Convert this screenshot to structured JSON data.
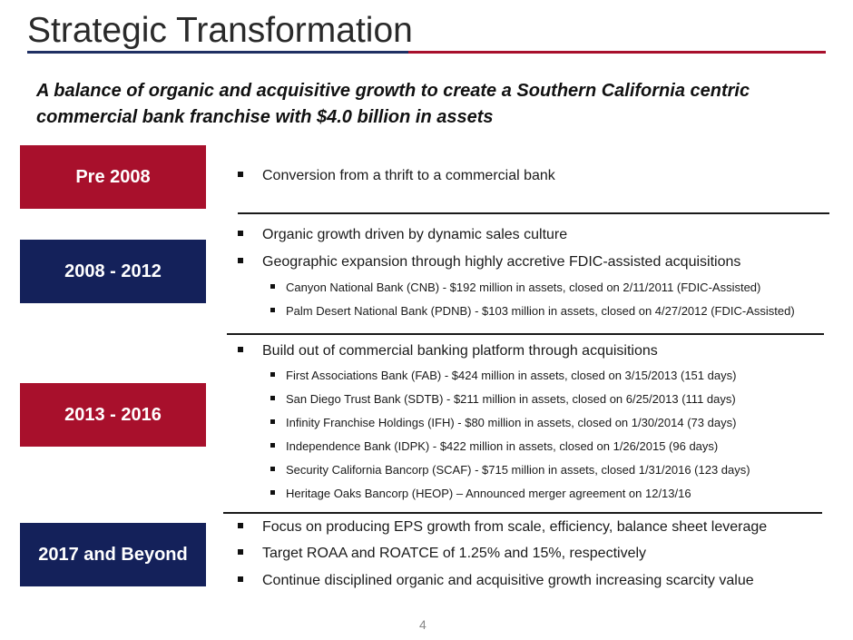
{
  "title": "Strategic Transformation",
  "subtitle": "A balance of organic and acquisitive growth to create a Southern California centric commercial bank franchise with $4.0 billion in assets",
  "colors": {
    "red": "#a8102c",
    "navy": "#14215a"
  },
  "sections": [
    {
      "label": "Pre 2008",
      "bullets": [
        "Conversion from a thrift to a commercial bank"
      ]
    },
    {
      "label": "2008 - 2012",
      "bullets": [
        "Organic growth driven by dynamic sales culture",
        "Geographic expansion through highly accretive FDIC-assisted acquisitions"
      ],
      "sub_bullets": [
        "Canyon National Bank (CNB) - $192 million in assets, closed on 2/11/2011 (FDIC-Assisted)",
        "Palm Desert National Bank (PDNB) - $103 million in assets, closed on 4/27/2012 (FDIC-Assisted)"
      ]
    },
    {
      "label": "2013 - 2016",
      "bullets": [
        "Build out of commercial banking platform through acquisitions"
      ],
      "sub_bullets": [
        "First Associations Bank (FAB) - $424 million in assets, closed on 3/15/2013 (151 days)",
        "San Diego Trust Bank (SDTB) - $211 million in assets, closed on 6/25/2013 (111 days)",
        "Infinity Franchise Holdings (IFH) - $80 million in assets, closed on 1/30/2014 (73 days)",
        "Independence Bank (IDPK) - $422 million in assets,  closed on 1/26/2015 (96 days)",
        "Security California Bancorp (SCAF) - $715 million in assets, closed 1/31/2016 (123 days)",
        "Heritage Oaks Bancorp (HEOP) – Announced  merger agreement on 12/13/16"
      ]
    },
    {
      "label": "2017 and Beyond",
      "bullets": [
        "Focus on producing EPS growth from scale, efficiency, balance sheet leverage",
        "Target ROAA and ROATCE of 1.25% and 15%, respectively",
        "Continue disciplined organic and acquisitive growth increasing scarcity value"
      ]
    }
  ],
  "page_number": "4"
}
